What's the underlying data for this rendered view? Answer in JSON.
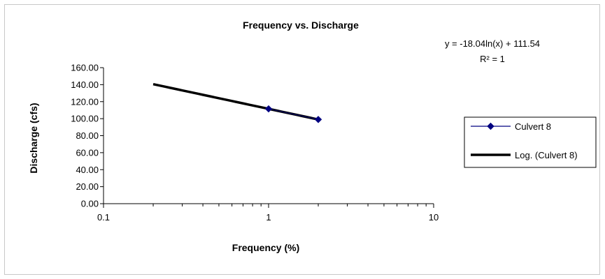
{
  "chart_data": {
    "type": "scatter",
    "title": "Frequency vs. Discharge",
    "xlabel": "Frequency (%)",
    "ylabel": "Discharge (cfs)",
    "x_scale": "log",
    "xlim": [
      0.1,
      10
    ],
    "ylim": [
      0,
      160
    ],
    "x_ticks": [
      "0.1",
      "1",
      "10"
    ],
    "y_ticks": [
      "0.00",
      "20.00",
      "40.00",
      "60.00",
      "80.00",
      "100.00",
      "120.00",
      "140.00",
      "160.00"
    ],
    "grid": false,
    "legend_position": "right",
    "series": [
      {
        "name": "Culvert 8",
        "kind": "line-with-markers",
        "marker": "diamond",
        "color": "#000080",
        "x": [
          1,
          2
        ],
        "y": [
          111.54,
          99.04
        ]
      }
    ],
    "trendline": {
      "name": "Log. (Culvert 8)",
      "kind": "logarithmic",
      "color": "#000000",
      "coefficient": -18.04,
      "intercept": 111.54,
      "x_range": [
        0.2,
        2
      ],
      "equation": "y = -18.04ln(x) + 111.54",
      "r_squared": "R² = 1"
    }
  }
}
